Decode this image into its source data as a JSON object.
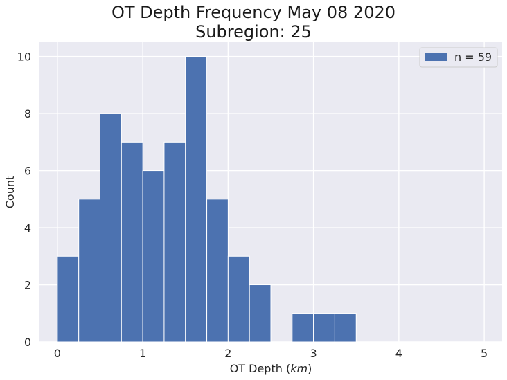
{
  "chart_data": {
    "type": "bar",
    "title_line1": "OT Depth Frequency May 08 2020",
    "title_line2": "Subregion: 25",
    "xlabel": "OT Depth (km)",
    "xlabel_prefix": "OT Depth (",
    "xlabel_italic": "km",
    "xlabel_suffix": ")",
    "ylabel": "Count",
    "bin_edges": [
      0,
      0.25,
      0.5,
      0.75,
      1.0,
      1.25,
      1.5,
      1.75,
      2.0,
      2.25,
      2.5,
      2.75,
      3.0,
      3.25,
      3.5,
      3.75,
      4.0,
      4.25,
      4.5,
      4.75,
      5.0
    ],
    "counts": [
      3,
      5,
      8,
      7,
      6,
      7,
      10,
      5,
      3,
      2,
      0,
      1,
      1,
      1,
      0,
      0,
      0,
      0,
      0,
      0
    ],
    "xlim": [
      -0.21,
      5.21
    ],
    "ylim": [
      0,
      10.5
    ],
    "xticks": [
      0,
      1,
      2,
      3,
      4,
      5
    ],
    "yticks": [
      0,
      2,
      4,
      6,
      8,
      10
    ],
    "grid": true,
    "legend": {
      "label": "n = 59",
      "placement": "top-right"
    },
    "colors": {
      "bar": "#4c72b0",
      "background": "#eaeaf2",
      "grid": "#ffffff"
    }
  }
}
